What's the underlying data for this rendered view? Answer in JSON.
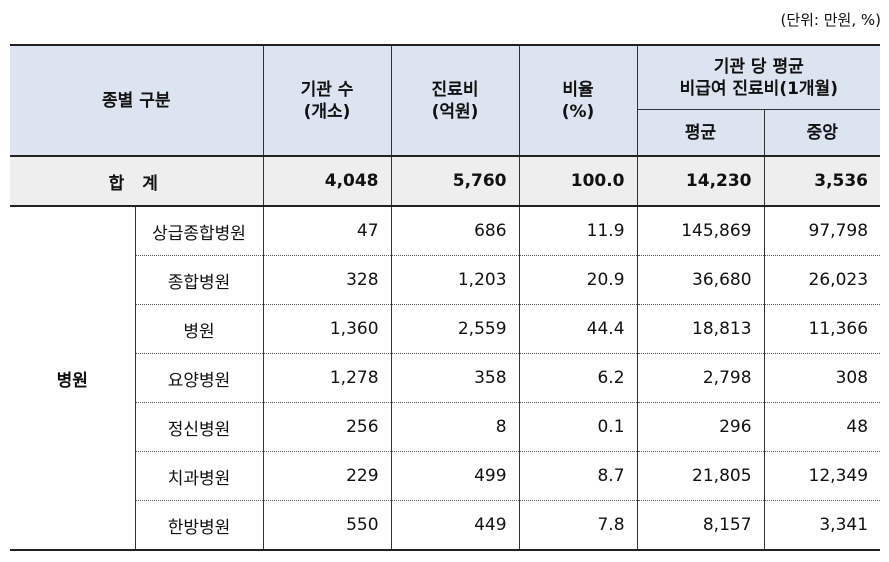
{
  "unit_note": "(단위: 만원, %)",
  "header": {
    "col_type": "종별 구분",
    "col_count_line1": "기관 수",
    "col_count_line2": "(개소)",
    "col_cost_line1": "진료비",
    "col_cost_line2": "(억원)",
    "col_ratio_line1": "비율",
    "col_ratio_line2": "(%)",
    "col_avg_group_line1": "기관 당 평균",
    "col_avg_group_line2": "비급여 진료비(1개월)",
    "col_mean": "평균",
    "col_median": "중앙"
  },
  "total": {
    "label": "합 계",
    "count": "4,048",
    "cost": "5,760",
    "ratio": "100.0",
    "mean": "14,230",
    "median": "3,536"
  },
  "category": "병원",
  "rows": [
    {
      "name": "상급종합병원",
      "count": "47",
      "cost": "686",
      "ratio": "11.9",
      "mean": "145,869",
      "median": "97,798"
    },
    {
      "name": "종합병원",
      "count": "328",
      "cost": "1,203",
      "ratio": "20.9",
      "mean": "36,680",
      "median": "26,023"
    },
    {
      "name": "병원",
      "count": "1,360",
      "cost": "2,559",
      "ratio": "44.4",
      "mean": "18,813",
      "median": "11,366"
    },
    {
      "name": "요양병원",
      "count": "1,278",
      "cost": "358",
      "ratio": "6.2",
      "mean": "2,798",
      "median": "308"
    },
    {
      "name": "정신병원",
      "count": "256",
      "cost": "8",
      "ratio": "0.1",
      "mean": "296",
      "median": "48"
    },
    {
      "name": "치과병원",
      "count": "229",
      "cost": "499",
      "ratio": "8.7",
      "mean": "21,805",
      "median": "12,349"
    },
    {
      "name": "한방병원",
      "count": "550",
      "cost": "449",
      "ratio": "7.8",
      "mean": "8,157",
      "median": "3,341"
    }
  ]
}
